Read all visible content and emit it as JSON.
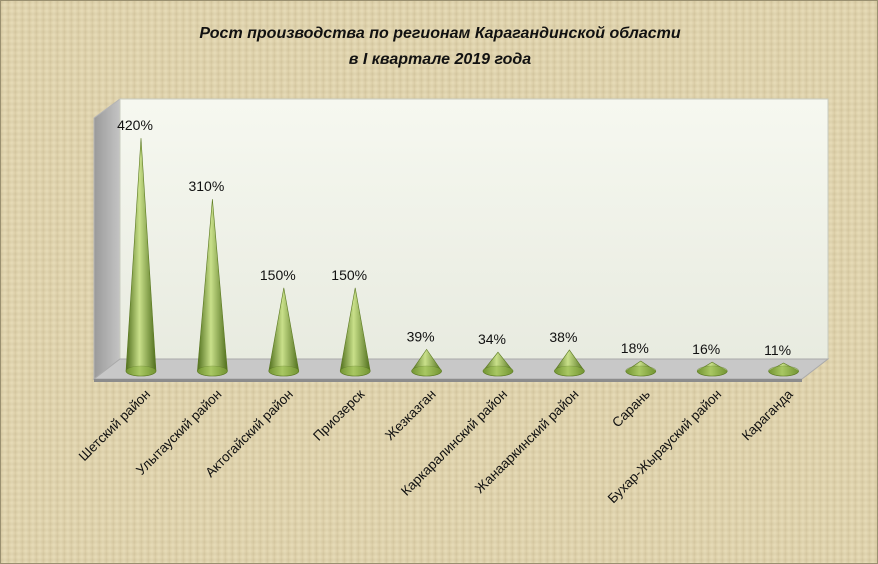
{
  "chart_data": {
    "type": "bar",
    "style": "3d-cone",
    "title_lines": [
      "Рост производства по регионам Карагандинской области",
      "в I квартале 2019 года"
    ],
    "categories": [
      "Шетский район",
      "Улытауский район",
      "Актогайский район",
      "Приозерск",
      "Жезказган",
      "Каркаралинский район",
      "Жанааркинский район",
      "Сарань",
      "Бухар-Жырауский район",
      "Караганда"
    ],
    "values": [
      420,
      310,
      150,
      150,
      39,
      34,
      38,
      18,
      16,
      11
    ],
    "data_labels": [
      "420%",
      "310%",
      "150%",
      "150%",
      "39%",
      "34%",
      "38%",
      "18%",
      "16%",
      "11%"
    ],
    "ylim": [
      0,
      440
    ],
    "grid": false,
    "legend": "none",
    "colors": {
      "cone_light": "#c9e08a",
      "cone_mid": "#8fb444",
      "cone_dark": "#4f6e1c",
      "wall": "#f2f4ec",
      "floor": "#c8c8c8"
    }
  }
}
